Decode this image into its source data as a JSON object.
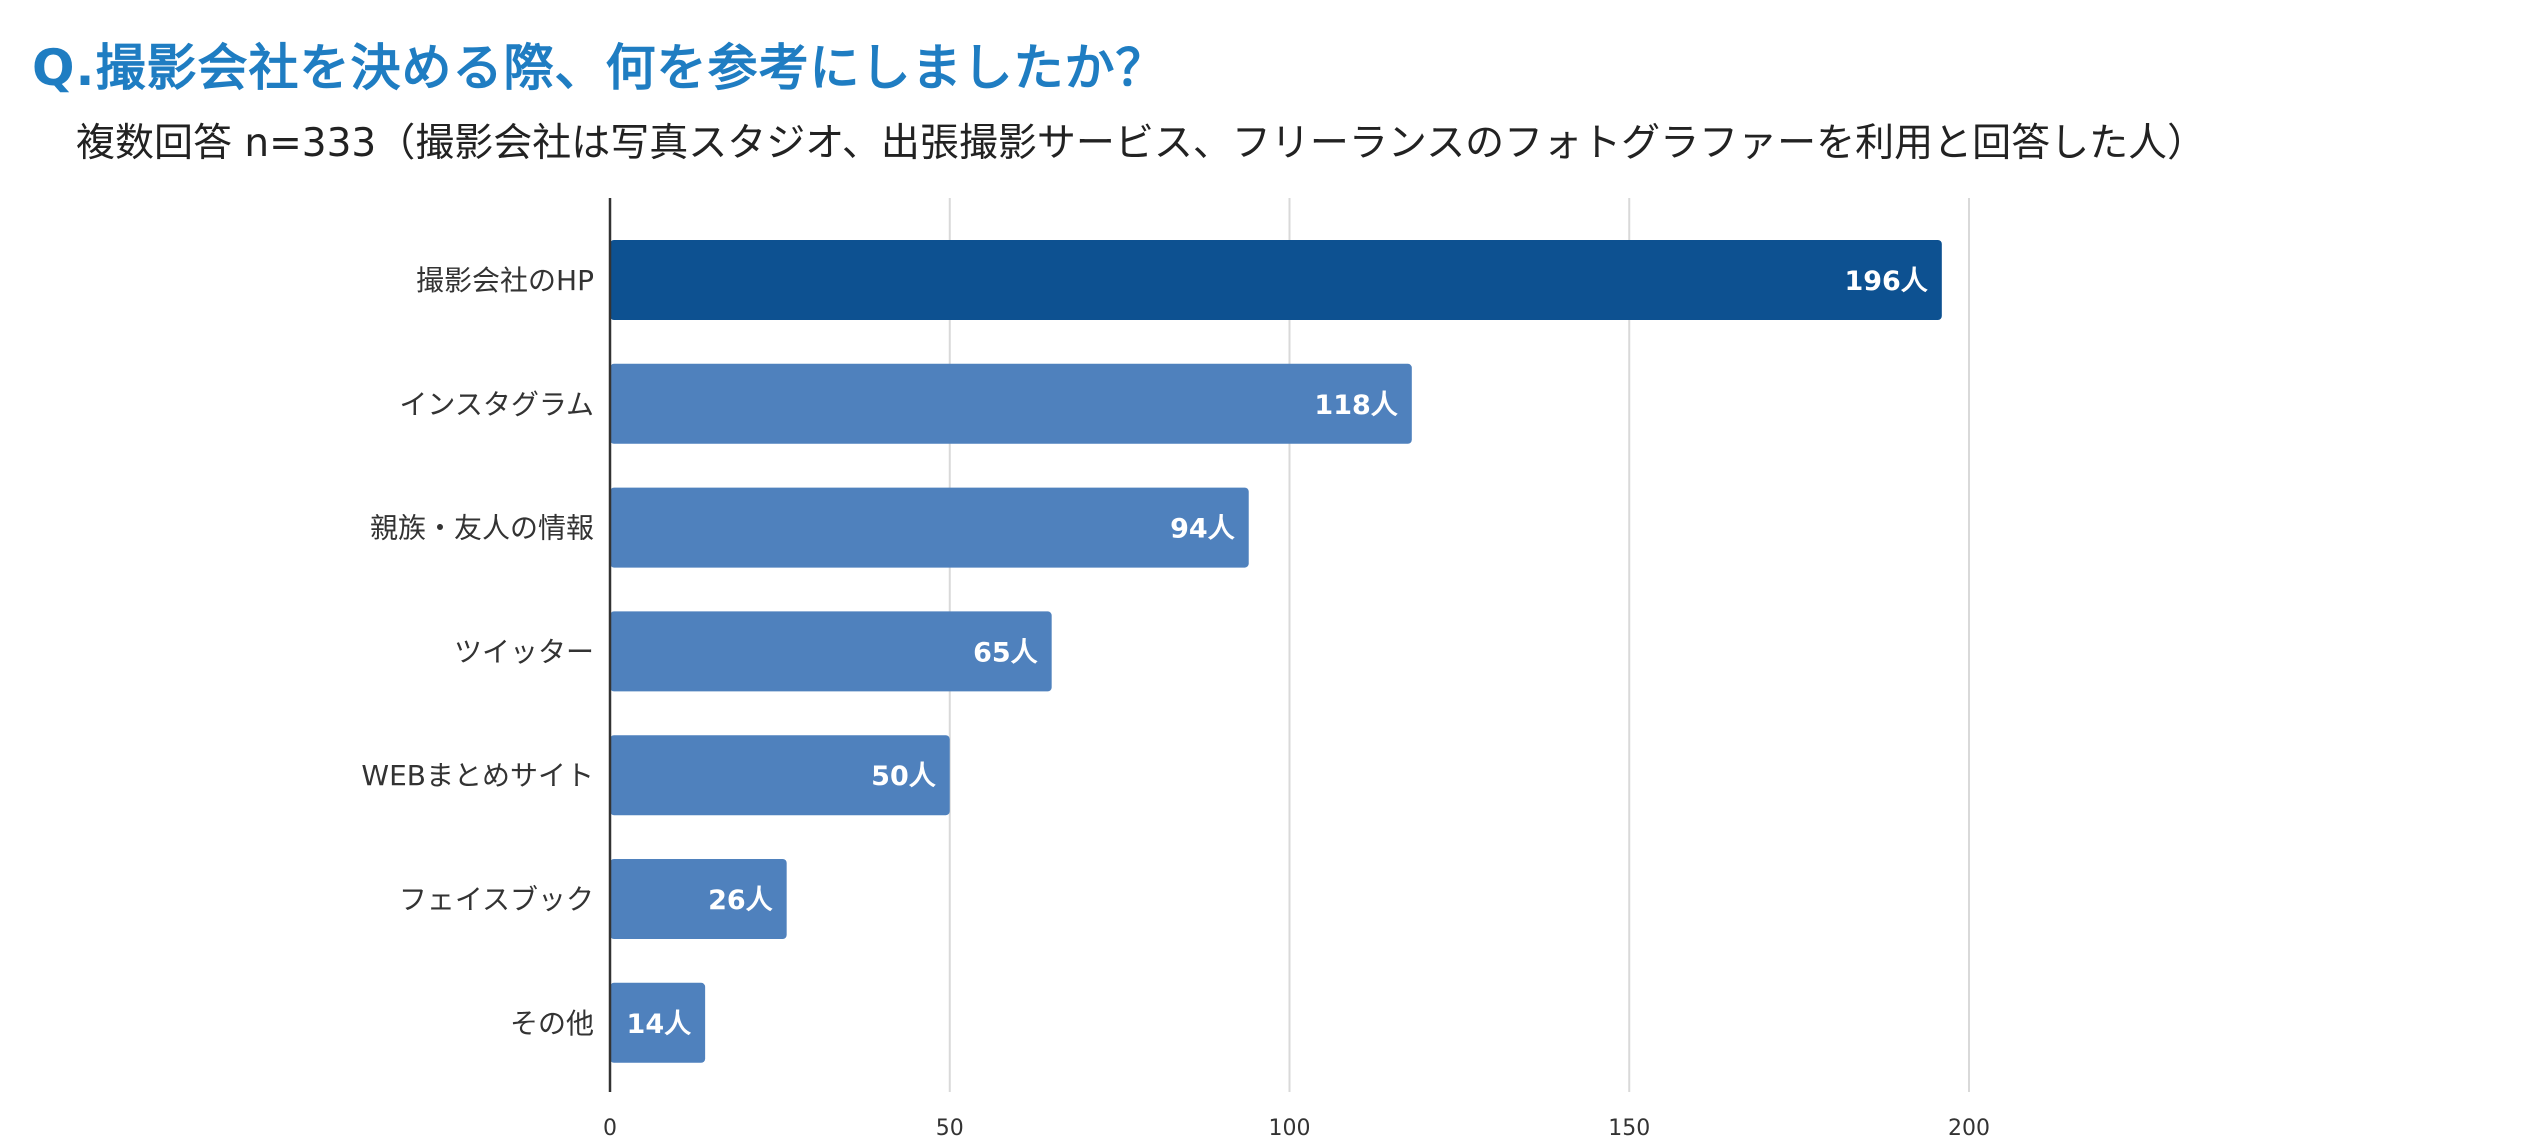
{
  "header": {
    "title": "Q.撮影会社を決める際、何を参考にしましたか？",
    "subtitle": "複数回答 n=333（撮影会社は写真スタジオ、出張撮影サービス、フリーランスのフォトグラファーを利用と回答した人）"
  },
  "chart_data": {
    "type": "bar",
    "orientation": "horizontal",
    "categories": [
      "撮影会社のHP",
      "インスタグラム",
      "親族・友人の情報",
      "ツイッター",
      "WEBまとめサイト",
      "フェイスブック",
      "その他"
    ],
    "values": [
      196,
      118,
      94,
      65,
      50,
      26,
      14
    ],
    "value_labels": [
      "196人",
      "118人",
      "94人",
      "65人",
      "50人",
      "26人",
      "14人"
    ],
    "x_ticks": [
      "0",
      "50",
      "100",
      "150",
      "200"
    ],
    "xlim": [
      0,
      200
    ],
    "grid": true,
    "colors": {
      "highlight": "#0d5191",
      "bar": "#4f81bd",
      "grid": "#d9d9d9",
      "axis": "#333333",
      "label_text": "#ffffff"
    }
  }
}
